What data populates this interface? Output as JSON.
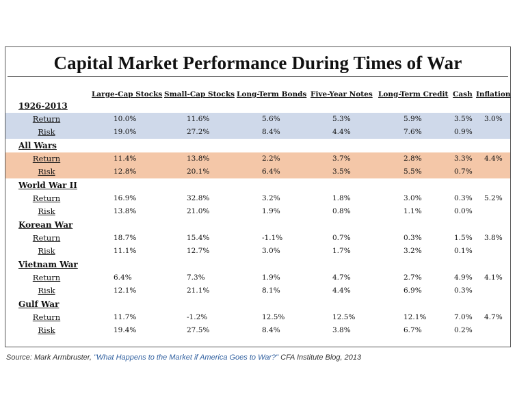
{
  "title": "Capital Market Performance During Times of War",
  "columns": [
    "Large-Cap Stocks",
    "Small-Cap Stocks",
    "Long-Term Bonds",
    "Five-Year Notes",
    "Long-Term Credit",
    "Cash",
    "Inflation"
  ],
  "groups": [
    {
      "label": "1926-2013",
      "highlight": "#cfd9ea",
      "rows": [
        {
          "label": "Return",
          "values": [
            "10.0%",
            "11.6%",
            "5.6%",
            "5.3%",
            "5.9%",
            "3.5%",
            "3.0%"
          ]
        },
        {
          "label": "Risk",
          "values": [
            "19.0%",
            "27.2%",
            "8.4%",
            "4.4%",
            "7.6%",
            "0.9%",
            ""
          ]
        }
      ]
    },
    {
      "label": "All Wars",
      "highlight": "#f4c7a8",
      "rows": [
        {
          "label": "Return",
          "values": [
            "11.4%",
            "13.8%",
            "2.2%",
            "3.7%",
            "2.8%",
            "3.3%",
            "4.4%"
          ]
        },
        {
          "label": "Risk",
          "values": [
            "12.8%",
            "20.1%",
            "6.4%",
            "3.5%",
            "5.5%",
            "0.7%",
            ""
          ]
        }
      ]
    },
    {
      "label": "World War II",
      "highlight": "",
      "rows": [
        {
          "label": "Return",
          "values": [
            "16.9%",
            "32.8%",
            "3.2%",
            "1.8%",
            "3.0%",
            "0.3%",
            "5.2%"
          ]
        },
        {
          "label": "Risk",
          "values": [
            "13.8%",
            "21.0%",
            "1.9%",
            "0.8%",
            "1.1%",
            "0.0%",
            ""
          ]
        }
      ]
    },
    {
      "label": "Korean War",
      "highlight": "",
      "rows": [
        {
          "label": "Return",
          "values": [
            "18.7%",
            "15.4%",
            "-1.1%",
            "0.7%",
            "0.3%",
            "1.5%",
            "3.8%"
          ]
        },
        {
          "label": "Risk",
          "values": [
            "11.1%",
            "12.7%",
            "3.0%",
            "1.7%",
            "3.2%",
            "0.1%",
            ""
          ]
        }
      ]
    },
    {
      "label": "Vietnam War",
      "highlight": "",
      "rows": [
        {
          "label": "Return",
          "values": [
            "6.4%",
            "7.3%",
            "1.9%",
            "4.7%",
            "2.7%",
            "4.9%",
            "4.1%"
          ]
        },
        {
          "label": "Risk",
          "values": [
            "12.1%",
            "21.1%",
            "8.1%",
            "4.4%",
            "6.9%",
            "0.3%",
            ""
          ]
        }
      ]
    },
    {
      "label": "Gulf War",
      "highlight": "",
      "rows": [
        {
          "label": "Return",
          "values": [
            "11.7%",
            "-1.2%",
            "12.5%",
            "12.5%",
            "12.1%",
            "7.0%",
            "4.7%"
          ]
        },
        {
          "label": "Risk",
          "values": [
            "19.4%",
            "27.5%",
            "8.4%",
            "3.8%",
            "6.7%",
            "0.2%",
            ""
          ]
        }
      ]
    }
  ],
  "source": {
    "prefix": "Source: Mark Armbruster, ",
    "link_text": "\"What Happens to the Market if America Goes to War?\"",
    "suffix": " CFA Institute Blog, 2013"
  }
}
